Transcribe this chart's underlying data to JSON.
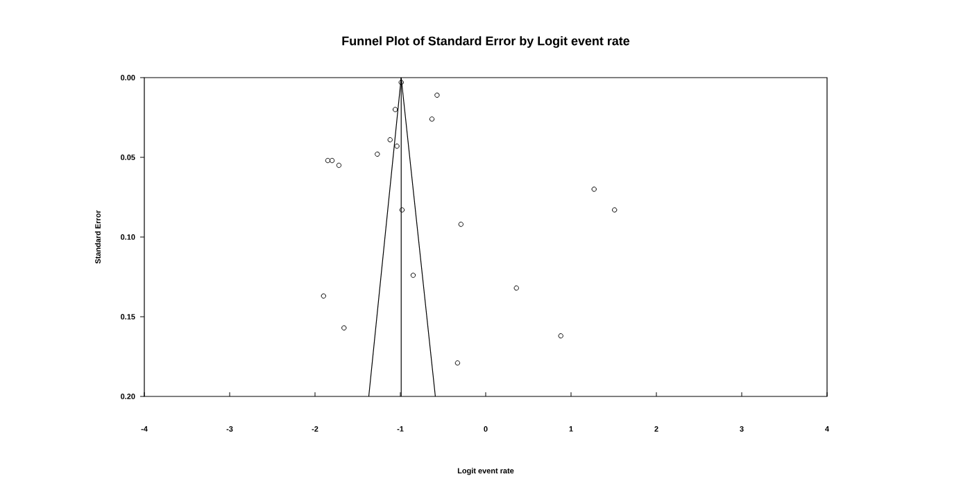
{
  "chart_data": {
    "type": "scatter",
    "title": "Funnel Plot of Standard Error by Logit event rate",
    "xlabel": "Logit event rate",
    "ylabel": "Standard Error",
    "xlim": [
      -4,
      4
    ],
    "xticks": [
      -4,
      -3,
      -2,
      -1,
      0,
      1,
      2,
      3,
      4
    ],
    "ylim": [
      0.2,
      0.0
    ],
    "yticks": [
      {
        "value": 0.0,
        "label": "0.00"
      },
      {
        "value": 0.05,
        "label": "0.05"
      },
      {
        "value": 0.1,
        "label": "0.10"
      },
      {
        "value": 0.15,
        "label": "0.15"
      },
      {
        "value": 0.2,
        "label": "0.20"
      }
    ],
    "marker": "circle",
    "series": [
      {
        "color": "#000000",
        "x": [
          -0.99,
          -0.57,
          -1.06,
          -0.63,
          -1.12,
          -1.04,
          -1.27,
          -1.85,
          -1.8,
          -1.72,
          1.27,
          1.51,
          -0.98,
          -0.29,
          -0.85,
          0.36,
          -1.9,
          -1.66,
          0.88,
          -0.33
        ],
        "values": [
          0.003,
          0.011,
          0.02,
          0.026,
          0.039,
          0.043,
          0.048,
          0.052,
          0.052,
          0.055,
          0.07,
          0.083,
          0.083,
          0.092,
          0.124,
          0.132,
          0.137,
          0.157,
          0.162,
          0.179
        ]
      },
      {
        "type": "line",
        "marker": "none",
        "color": "#000000",
        "x": [
          -0.99,
          -1.37
        ],
        "values": [
          0.0,
          0.2
        ]
      },
      {
        "type": "line",
        "marker": "none",
        "color": "#000000",
        "x": [
          -0.99,
          -0.59
        ],
        "values": [
          0.0,
          0.2
        ]
      }
    ],
    "ref_lines": [
      {
        "axis": "x",
        "value": -0.99,
        "color": "#000000"
      }
    ]
  }
}
